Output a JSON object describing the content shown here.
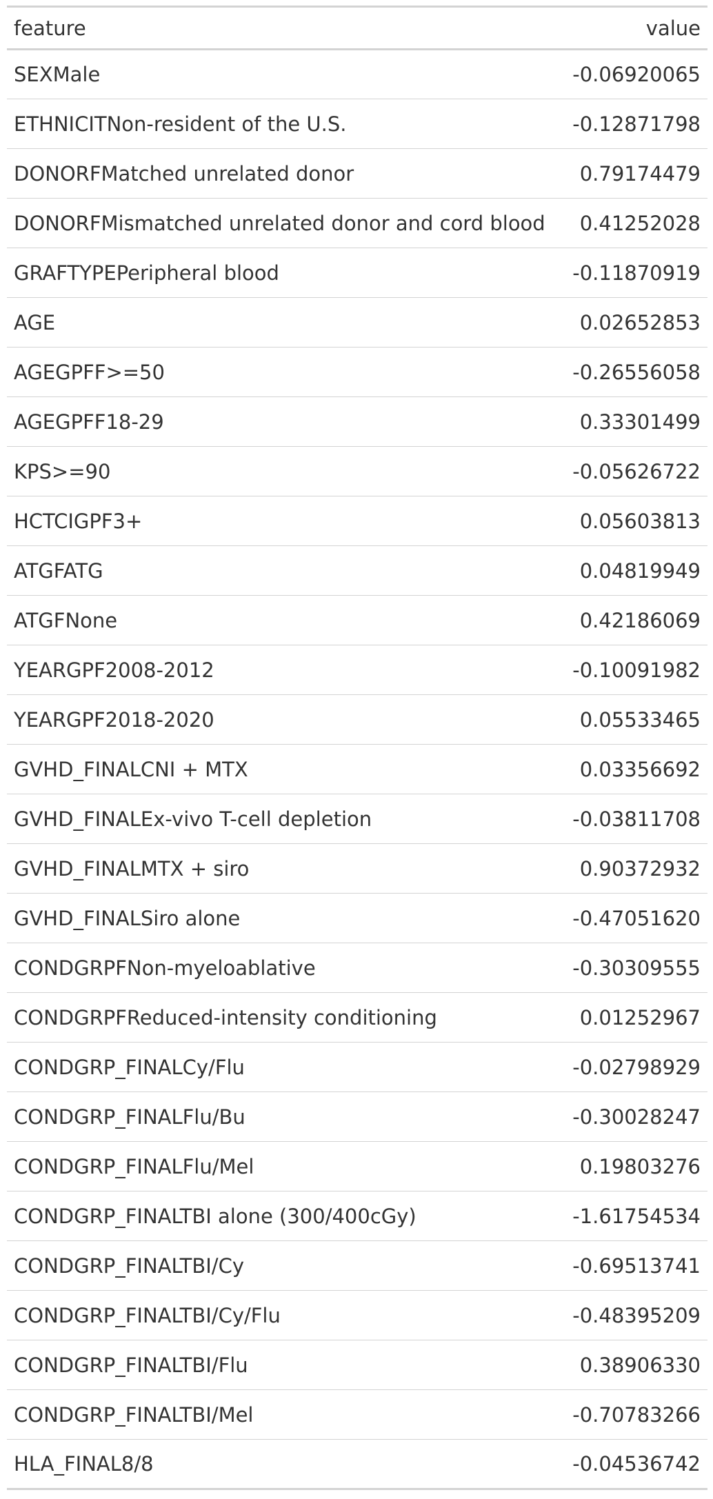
{
  "table": {
    "headers": {
      "feature": "feature",
      "value": "value"
    },
    "rows": [
      {
        "feature": "SEXMale",
        "value": "-0.06920065"
      },
      {
        "feature": "ETHNICITNon-resident of the U.S.",
        "value": "-0.12871798"
      },
      {
        "feature": "DONORFMatched unrelated donor",
        "value": "0.79174479"
      },
      {
        "feature": "DONORFMismatched unrelated donor and cord blood",
        "value": "0.41252028"
      },
      {
        "feature": "GRAFTYPEPeripheral blood",
        "value": "-0.11870919"
      },
      {
        "feature": "AGE",
        "value": "0.02652853"
      },
      {
        "feature": "AGEGPFF>=50",
        "value": "-0.26556058"
      },
      {
        "feature": "AGEGPFF18-29",
        "value": "0.33301499"
      },
      {
        "feature": "KPS>=90",
        "value": "-0.05626722"
      },
      {
        "feature": "HCTCIGPF3+",
        "value": "0.05603813"
      },
      {
        "feature": "ATGFATG",
        "value": "0.04819949"
      },
      {
        "feature": "ATGFNone",
        "value": "0.42186069"
      },
      {
        "feature": "YEARGPF2008-2012",
        "value": "-0.10091982"
      },
      {
        "feature": "YEARGPF2018-2020",
        "value": "0.05533465"
      },
      {
        "feature": "GVHD_FINALCNI + MTX",
        "value": "0.03356692"
      },
      {
        "feature": "GVHD_FINALEx-vivo T-cell depletion",
        "value": "-0.03811708"
      },
      {
        "feature": "GVHD_FINALMTX + siro",
        "value": "0.90372932"
      },
      {
        "feature": "GVHD_FINALSiro alone",
        "value": "-0.47051620"
      },
      {
        "feature": "CONDGRPFNon-myeloablative",
        "value": "-0.30309555"
      },
      {
        "feature": "CONDGRPFReduced-intensity conditioning",
        "value": "0.01252967"
      },
      {
        "feature": "CONDGRP_FINALCy/Flu",
        "value": "-0.02798929"
      },
      {
        "feature": "CONDGRP_FINALFlu/Bu",
        "value": "-0.30028247"
      },
      {
        "feature": "CONDGRP_FINALFlu/Mel",
        "value": "0.19803276"
      },
      {
        "feature": "CONDGRP_FINALTBI alone (300/400cGy)",
        "value": "-1.61754534"
      },
      {
        "feature": "CONDGRP_FINALTBI/Cy",
        "value": "-0.69513741"
      },
      {
        "feature": "CONDGRP_FINALTBI/Cy/Flu",
        "value": "-0.48395209"
      },
      {
        "feature": "CONDGRP_FINALTBI/Flu",
        "value": "0.38906330"
      },
      {
        "feature": "CONDGRP_FINALTBI/Mel",
        "value": "-0.70783266"
      },
      {
        "feature": "HLA_FINAL8/8",
        "value": "-0.04536742"
      }
    ]
  }
}
